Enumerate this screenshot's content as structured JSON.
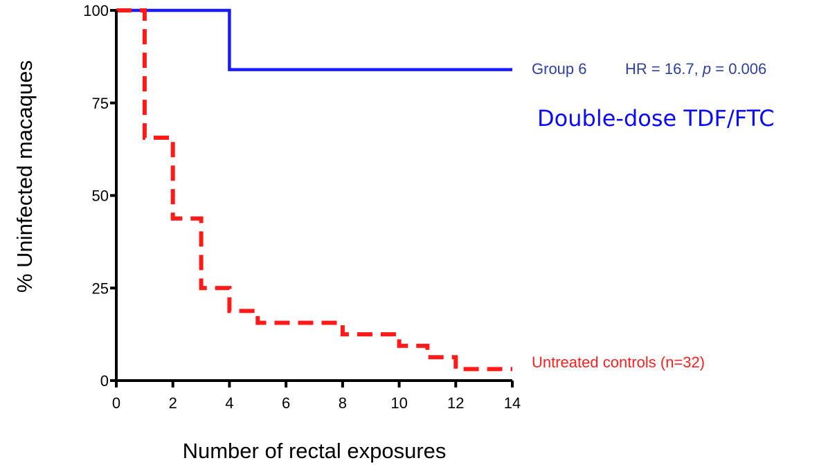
{
  "chart_data": {
    "type": "line",
    "subtype": "kaplan-meier step survival curves",
    "xlabel": "Number of rectal exposures",
    "ylabel": "% Uninfected macaques",
    "xlim": [
      0,
      14
    ],
    "ylim": [
      0,
      100
    ],
    "x_ticks": [
      0,
      2,
      4,
      6,
      8,
      10,
      12,
      14
    ],
    "y_ticks": [
      0,
      25,
      50,
      75,
      100
    ],
    "grid": false,
    "legend": "none (direct labels at right)",
    "series": [
      {
        "name": "Group 6",
        "color": "#1a1aff",
        "line_style": "solid",
        "steps": [
          [
            0,
            100
          ],
          [
            4,
            100
          ],
          [
            4,
            84
          ],
          [
            14,
            84
          ]
        ]
      },
      {
        "name": "Untreated controls (n=32)",
        "color": "#ff1a1a",
        "line_style": "dashed",
        "steps": [
          [
            0,
            100
          ],
          [
            1,
            100
          ],
          [
            1,
            65.6
          ],
          [
            2,
            65.6
          ],
          [
            2,
            43.8
          ],
          [
            3,
            43.8
          ],
          [
            3,
            25
          ],
          [
            4,
            25
          ],
          [
            4,
            18.8
          ],
          [
            5,
            18.8
          ],
          [
            5,
            15.6
          ],
          [
            8,
            15.6
          ],
          [
            8,
            12.5
          ],
          [
            10,
            12.5
          ],
          [
            10,
            9.4
          ],
          [
            11,
            9.4
          ],
          [
            11,
            6.3
          ],
          [
            12,
            6.3
          ],
          [
            12,
            3.1
          ],
          [
            14,
            3.1
          ]
        ]
      }
    ],
    "annotations": {
      "group6_label": "Group 6",
      "hr_prefix": "HR = 16.7, ",
      "p_symbol": "p",
      "p_suffix": " = 0.006",
      "dose_label": "Double-dose TDF/FTC",
      "controls_label": "Untreated controls (n=32)"
    },
    "colors": {
      "group6_annotation": "#2f3f9f",
      "dose_label": "#0a0aff",
      "controls_label": "#ff2020",
      "axis": "#000000"
    }
  }
}
